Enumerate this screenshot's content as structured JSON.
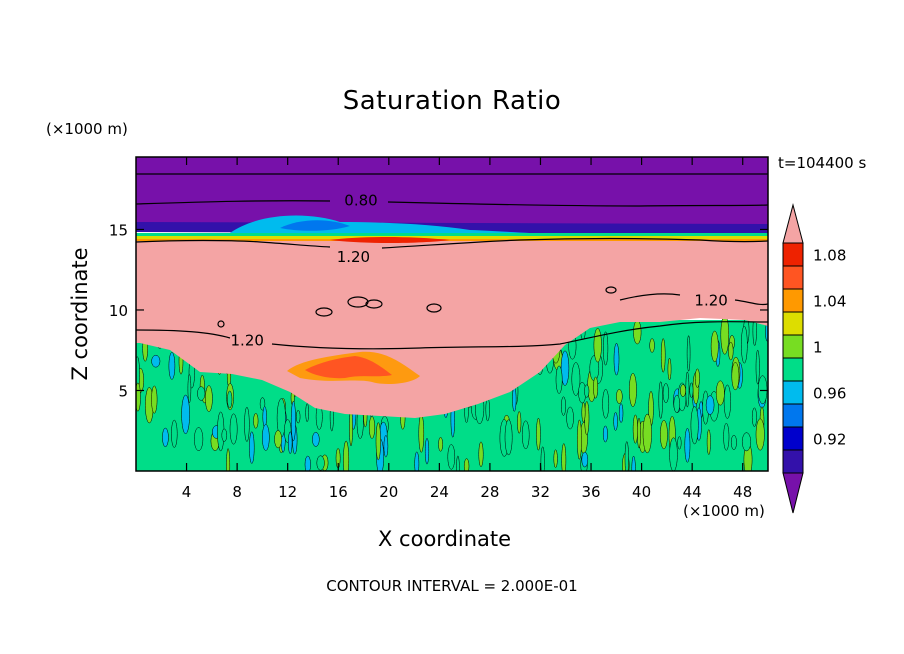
{
  "chart_data": {
    "type": "heatmap",
    "title": "Saturation Ratio",
    "xlabel": "X coordinate",
    "ylabel": "Z coordinate",
    "x_unit": "(×1000 m)",
    "z_unit": "(×1000 m)",
    "time_label": "t=104400 s",
    "xlim": [
      0,
      50
    ],
    "zlim": [
      0,
      19.5
    ],
    "x_ticks": [
      4,
      8,
      12,
      16,
      20,
      24,
      28,
      32,
      36,
      40,
      44,
      48
    ],
    "z_ticks": [
      5,
      10,
      15
    ],
    "contour_interval_text": "CONTOUR INTERVAL = 2.000E-01",
    "contour_labels": [
      {
        "text": "0.80",
        "x": 17.8,
        "z": 16.8
      },
      {
        "text": "1.20",
        "x": 17.2,
        "z": 13.3
      },
      {
        "text": "1.20",
        "x": 8.8,
        "z": 8.1
      },
      {
        "text": "1.20",
        "x": 45.5,
        "z": 10.6
      }
    ],
    "colorbar": {
      "levels": [
        0.92,
        0.96,
        1,
        1.04,
        1.08
      ],
      "labels": [
        "0.92",
        "0.96",
        "1",
        "1.04",
        "1.08"
      ],
      "colors": [
        "#7711aa",
        "#3311aa",
        "#0000cc",
        "#0077ee",
        "#00bbee",
        "#00dd88",
        "#77dd22",
        "#dddd00",
        "#ff9900",
        "#ff5522",
        "#ee2200",
        "#f4a4a4"
      ]
    },
    "regions": {
      "top_layer": {
        "z_min": 16.5,
        "z_max": 19.5,
        "value": "<0.88",
        "color": "#7711aa"
      },
      "moist_layer": {
        "z_min": 9.5,
        "z_max": 14.5,
        "value": ">1.10",
        "color": "#f4a4a4"
      },
      "supersaturated_patch": {
        "x_min": 12,
        "x_max": 22,
        "z_min": 5.5,
        "z_max": 7.2,
        "value": "1.06-1.08"
      },
      "lower_turbulent_layer": {
        "z_min": 0,
        "z_max": 8.5,
        "value": "0.96-1.02"
      }
    }
  }
}
